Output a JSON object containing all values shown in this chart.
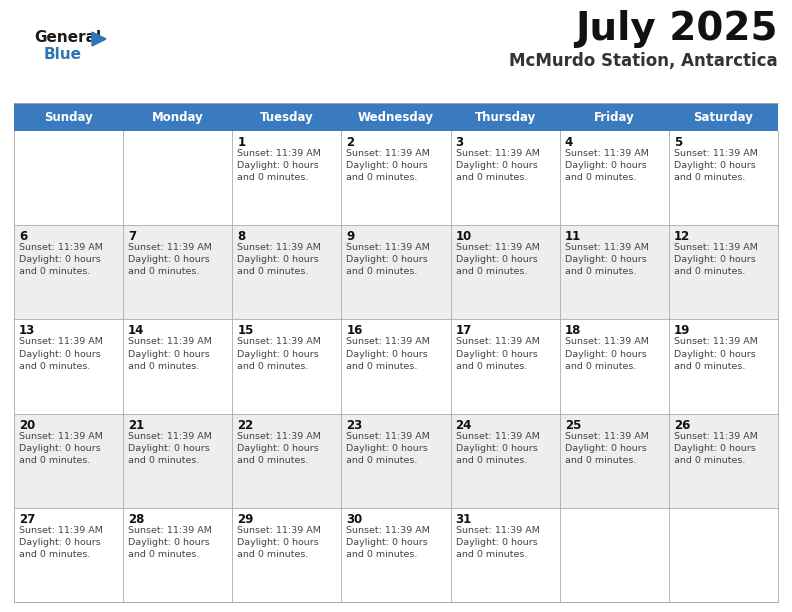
{
  "title": "July 2025",
  "subtitle": "McMurdo Station, Antarctica",
  "header_color": "#3a7bbf",
  "header_text_color": "#ffffff",
  "bg_color": "#ffffff",
  "row_colors": [
    "#ffffff",
    "#eeeeee"
  ],
  "cell_border_color": "#aaaaaa",
  "day_names": [
    "Sunday",
    "Monday",
    "Tuesday",
    "Wednesday",
    "Thursday",
    "Friday",
    "Saturday"
  ],
  "day_num_color": "#111111",
  "cell_text_color": "#444444",
  "calendar": [
    [
      null,
      null,
      1,
      2,
      3,
      4,
      5
    ],
    [
      6,
      7,
      8,
      9,
      10,
      11,
      12
    ],
    [
      13,
      14,
      15,
      16,
      17,
      18,
      19
    ],
    [
      20,
      21,
      22,
      23,
      24,
      25,
      26
    ],
    [
      27,
      28,
      29,
      30,
      31,
      null,
      null
    ]
  ],
  "cell_info": "Sunset: 11:39 AM\nDaylight: 0 hours\nand 0 minutes.",
  "logo_color": "#2e75b6",
  "logo_black": "#1a1a1a"
}
